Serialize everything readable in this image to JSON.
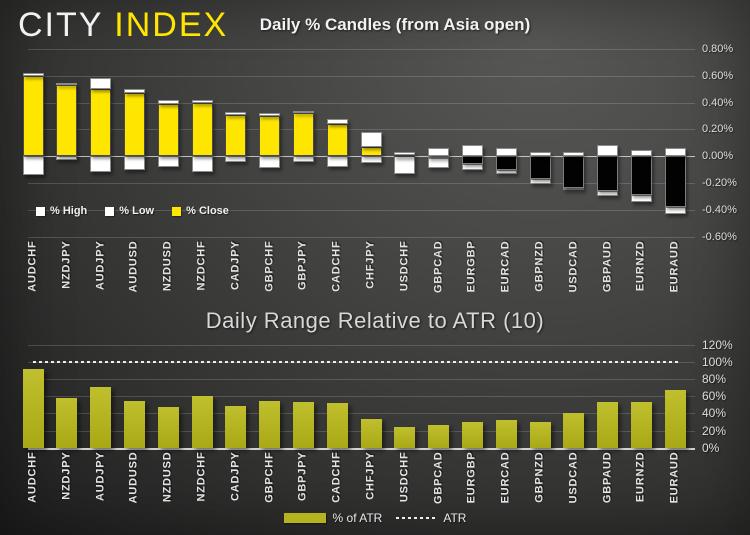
{
  "brand": {
    "city": "CITY",
    "index": "INDEX"
  },
  "top_chart": {
    "title": "Daily % Candles (from Asia open)",
    "legend": [
      {
        "label": "% High",
        "color": "#ffffff"
      },
      {
        "label": "% Low",
        "color": "#ffffff"
      },
      {
        "label": "% Close",
        "color": "#ffe600"
      }
    ]
  },
  "bottom_chart": {
    "title": "Daily Range Relative to ATR (10)",
    "legend": [
      {
        "label": "% of ATR",
        "swatch": "bar",
        "color": "#b5b41e"
      },
      {
        "label": "ATR",
        "swatch": "dotted-line",
        "color": "#efefef"
      }
    ]
  },
  "chart_data": [
    {
      "type": "bar",
      "subtype": "candlestick-stacked",
      "title": "Daily % Candles (from Asia open)",
      "categories": [
        "AUDCHF",
        "NZDJPY",
        "AUDJPY",
        "AUDUSD",
        "NZDUSD",
        "NZDCHF",
        "CADJPY",
        "GBPCHF",
        "GBPJPY",
        "CADCHF",
        "CHFJPY",
        "USDCHF",
        "GBPCAD",
        "EURGBP",
        "EURCAD",
        "GBPNZD",
        "USDCAD",
        "GBPAUD",
        "EURNZD",
        "EURAUD"
      ],
      "series": [
        {
          "name": "% High",
          "values": [
            0.62,
            0.55,
            0.58,
            0.5,
            0.42,
            0.42,
            0.33,
            0.32,
            0.34,
            0.28,
            0.18,
            0.03,
            0.06,
            0.08,
            0.06,
            0.03,
            0.03,
            0.08,
            0.05,
            0.06
          ]
        },
        {
          "name": "% Low",
          "values": [
            -0.14,
            -0.03,
            -0.12,
            -0.1,
            -0.08,
            -0.12,
            -0.04,
            -0.09,
            -0.04,
            -0.08,
            -0.05,
            -0.13,
            -0.09,
            -0.1,
            -0.13,
            -0.21,
            -0.25,
            -0.3,
            -0.34,
            -0.43
          ]
        },
        {
          "name": "% Close",
          "values": [
            0.6,
            0.53,
            0.5,
            0.47,
            0.39,
            0.4,
            0.31,
            0.3,
            0.32,
            0.24,
            0.07,
            0.01,
            -0.01,
            -0.06,
            -0.1,
            -0.17,
            -0.24,
            -0.26,
            -0.29,
            -0.38
          ]
        }
      ],
      "ylim": [
        -0.6,
        0.8
      ],
      "ytick_labels": [
        "0.80%",
        "0.60%",
        "0.40%",
        "0.20%",
        "0.00%",
        "-0.20%",
        "-0.40%",
        "-0.60%"
      ],
      "grid": true,
      "legend_position": "inside-bottom-left",
      "positive_close_color": "#ffe600",
      "negative_close_color": "#000000",
      "high_low_color": "#ffffff"
    },
    {
      "type": "bar",
      "title": "Daily Range Relative to ATR (10)",
      "categories": [
        "AUDCHF",
        "NZDJPY",
        "AUDJPY",
        "AUDUSD",
        "NZDUSD",
        "NZDCHF",
        "CADJPY",
        "GBPCHF",
        "GBPJPY",
        "CADCHF",
        "CHFJPY",
        "USDCHF",
        "GBPCAD",
        "EURGBP",
        "EURCAD",
        "GBPNZD",
        "USDCAD",
        "GBPAUD",
        "EURNZD",
        "EURAUD"
      ],
      "series": [
        {
          "name": "% of ATR",
          "values": [
            92,
            58,
            71,
            55,
            47,
            60,
            49,
            55,
            53,
            52,
            34,
            24,
            27,
            30,
            32,
            30,
            40,
            53,
            53,
            67
          ]
        }
      ],
      "reference_line": {
        "name": "ATR",
        "value": 100,
        "style": "dotted"
      },
      "ylim": [
        0,
        120
      ],
      "ytick_labels": [
        "120%",
        "100%",
        "80%",
        "60%",
        "40%",
        "20%",
        "0%"
      ],
      "grid": true,
      "bar_color": "#b5b41e",
      "legend_position": "below"
    }
  ],
  "colors": {
    "background_dark": "#2a2a2a",
    "background_light": "#4e4e4c",
    "accent_yellow": "#ffe600",
    "atr_bar_olive": "#b5b41e",
    "grid": "rgba(255,255,255,0.16)",
    "text_light": "#e4e4e4"
  }
}
